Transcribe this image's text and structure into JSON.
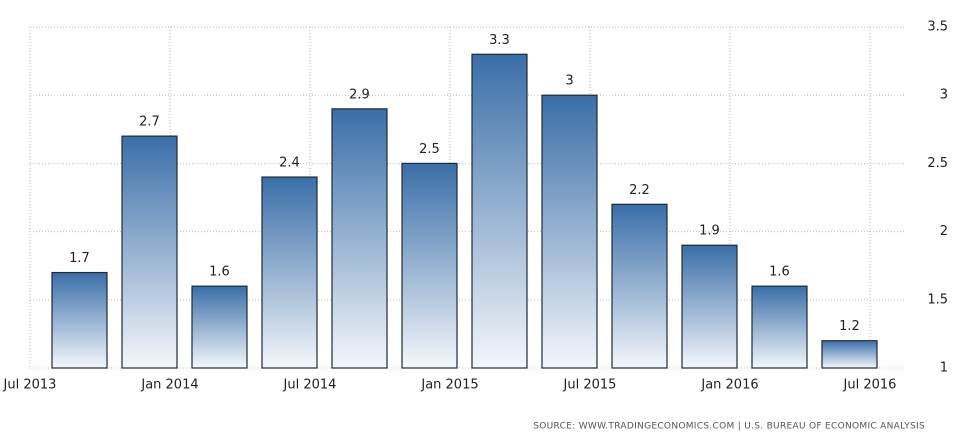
{
  "chart_data": {
    "type": "bar",
    "values": [
      1.7,
      2.7,
      1.6,
      2.4,
      2.9,
      2.5,
      3.3,
      3,
      2.2,
      1.9,
      1.6,
      1.2
    ],
    "x_labels": [
      "Jul 2013",
      "Jan 2014",
      "Jul 2014",
      "Jan 2015",
      "Jul 2015",
      "Jan 2016",
      "Jul 2016"
    ],
    "ylim": [
      1,
      3.5
    ],
    "yticks": [
      1,
      1.5,
      2,
      2.5,
      3,
      3.5
    ],
    "grid": true,
    "color": "#3a6ea8",
    "source": "SOURCE: WWW.TRADINGECONOMICS.COM | U.S. BUREAU OF ECONOMIC ANALYSIS"
  }
}
